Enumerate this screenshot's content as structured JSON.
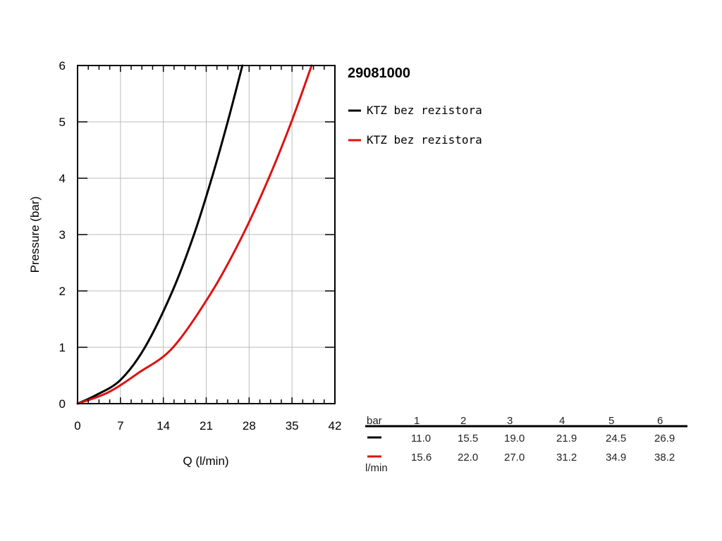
{
  "chart_data": {
    "type": "line",
    "title": "29081000",
    "xlabel": "Q (l/min)",
    "ylabel": "Pressure (bar)",
    "xlim": [
      0,
      42
    ],
    "ylim": [
      0,
      6
    ],
    "x_ticks": [
      "0",
      "7",
      "14",
      "21",
      "28",
      "35",
      "42"
    ],
    "y_ticks": [
      "0",
      "1",
      "2",
      "3",
      "4",
      "5",
      "6"
    ],
    "grid": true,
    "legend_position": "right",
    "series": [
      {
        "name": "KTZ bez rezistora",
        "color": "#000000",
        "points": [
          [
            0,
            0
          ],
          [
            3,
            0.15
          ],
          [
            7,
            0.42
          ],
          [
            11,
            1.0
          ],
          [
            15.5,
            2.0
          ],
          [
            19,
            3.0
          ],
          [
            21.9,
            4.0
          ],
          [
            24.5,
            5.0
          ],
          [
            26.9,
            6.0
          ]
        ]
      },
      {
        "name": "KTZ bez rezistora",
        "color": "#e01010",
        "points": [
          [
            0,
            0
          ],
          [
            5,
            0.2
          ],
          [
            10,
            0.55
          ],
          [
            15.6,
            1.0
          ],
          [
            22,
            2.0
          ],
          [
            27,
            3.0
          ],
          [
            31.2,
            4.0
          ],
          [
            34.9,
            5.0
          ],
          [
            38.2,
            6.0
          ]
        ]
      }
    ]
  },
  "table": {
    "header_label": "bar",
    "unit_label": "l/min",
    "columns": [
      "1",
      "2",
      "3",
      "4",
      "5",
      "6"
    ],
    "rows": [
      {
        "color": "#000000",
        "values": [
          "11.0",
          "15.5",
          "19.0",
          "21.9",
          "24.5",
          "26.9"
        ]
      },
      {
        "color": "#e01010",
        "values": [
          "15.6",
          "22.0",
          "27.0",
          "31.2",
          "34.9",
          "38.2"
        ]
      }
    ]
  }
}
